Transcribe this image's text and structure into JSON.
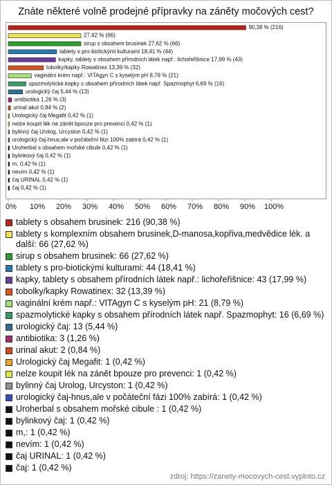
{
  "chart_data": {
    "type": "bar",
    "orientation": "horizontal",
    "title": "Znáte některé volně prodejné přípravky na záněty močových cest?",
    "categories": [
      "tablety s obsahem brusinek: 216 (90,38 %)",
      "tablety s komplexním obsahem brusinek,D-manosa,kopřiva,medvědice lék. a další: 66 (27,62 %)",
      "sirup s obsahem brusinek: 66 (27,62 %)",
      "tablety s pro-biotickými kulturami: 44 (18,41 %)",
      "kapky, tablety s obsahem přírodních látek např.: lichořeřišnice: 43 (17,99 %)",
      "tobolky/kapky Rowatinex: 32 (13,39 %)",
      "vaginální krém např.: VITAgyn C s kyselým pH: 21 (8,79 %)",
      "spazmolytické kapky s obsahem přírodních látek např. Spazmophyt: 16 (6,69 %)",
      "urologický čaj: 13 (5,44 %)",
      "antibiotika: 3 (1,26 %)",
      "urinal akut: 2 (0,84 %)",
      "Urologický čaj Megafit: 1 (0,42 %)",
      "nelze koupit lék na zánět bpouze pro prevenci: 1 (0,42 %)",
      "bylinný čaj Urolog, Urcyston: 1 (0,42 %)",
      "urologický čaj-hnus,ale v počáteční fázi 100% zabírá: 1 (0,42 %)",
      "Uroherbal s obsahem mořské cibule : 1 (0,42 %)",
      "bylinkový čaj: 1 (0,42 %)",
      "m,: 1 (0,42 %)",
      "nevím: 1 (0,42 %)",
      "čaj URINAL: 1 (0,42 %)",
      "čaj: 1 (0,42 %)"
    ],
    "values": [
      90.38,
      27.62,
      27.62,
      18.41,
      17.99,
      13.39,
      8.79,
      6.69,
      5.44,
      1.26,
      0.84,
      0.42,
      0.42,
      0.42,
      0.42,
      0.42,
      0.42,
      0.42,
      0.42,
      0.42,
      0.42
    ],
    "value_labels": [
      "90,38 % (216)",
      "27,62 % (66)",
      "sirup s obsahem brusinek 27,62 % (66)",
      "tablety s pro-biotickými kulturami 18,41 % (44)",
      "kapky, tablety s obsahem přírodních látek např.: lichořeřišnice 17,99 % (43)",
      "tobolky/kapky Rowatinex 13,39 % (32)",
      "vaginální krém např.: VITAgyn C s kyselým pH 8,79 % (21)",
      "spazmolytické kapky s obsahem přírodních látek např. Spazmophyt 6,69 % (16)",
      "urologický čaj 5,44 % (13)",
      "antibiotika 1,26 % (3)",
      "urinal akut 0,84 % (2)",
      "Urologický čaj Megafit 0,42 % (1)",
      "nelze koupit lék na zánět bpouze pro prevenci 0,42 % (1)",
      "bylinný čaj Urolog, Urcyston 0,42 % (1)",
      "urologický čaj-hnus,ale v počáteční fázi 100% zabírá 0,42 % (1)",
      "Uroherbal s obsahem mořské cibule  0,42 % (1)",
      "bylinkový čaj 0,42 % (1)",
      "m, 0,42 % (1)",
      "nevím 0,42 % (1)",
      "čaj URINAL 0,42 % (1)",
      "čaj 0,42 % (1)"
    ],
    "colors": [
      "#c0201a",
      "#f5e050",
      "#2ca02c",
      "#2a7ab0",
      "#6a3d9a",
      "#d9541e",
      "#a6e07a",
      "#3a9a6a",
      "#2f6f8f",
      "#a0306a",
      "#d04a1a",
      "#f0a030",
      "#e6e640",
      "#909090",
      "#3050c0",
      "#111111",
      "#111111",
      "#111111",
      "#111111",
      "#111111",
      "#111111"
    ],
    "xlim": [
      0,
      100
    ],
    "xticks": [
      {
        "value": 0,
        "label": "0%"
      },
      {
        "value": 10,
        "label": "10%"
      },
      {
        "value": 20,
        "label": "20%"
      },
      {
        "value": 30,
        "label": "30%"
      },
      {
        "value": 40,
        "label": "40%"
      },
      {
        "value": 50,
        "label": "50%"
      },
      {
        "value": 60,
        "label": "60%"
      },
      {
        "value": 70,
        "label": "70%"
      },
      {
        "value": 80,
        "label": "80%"
      },
      {
        "value": 90,
        "label": "90%"
      },
      {
        "value": 100,
        "label": "100%"
      }
    ],
    "source": "zdroj: https://zanety-mocovych-cest.vyplnto.cz"
  }
}
